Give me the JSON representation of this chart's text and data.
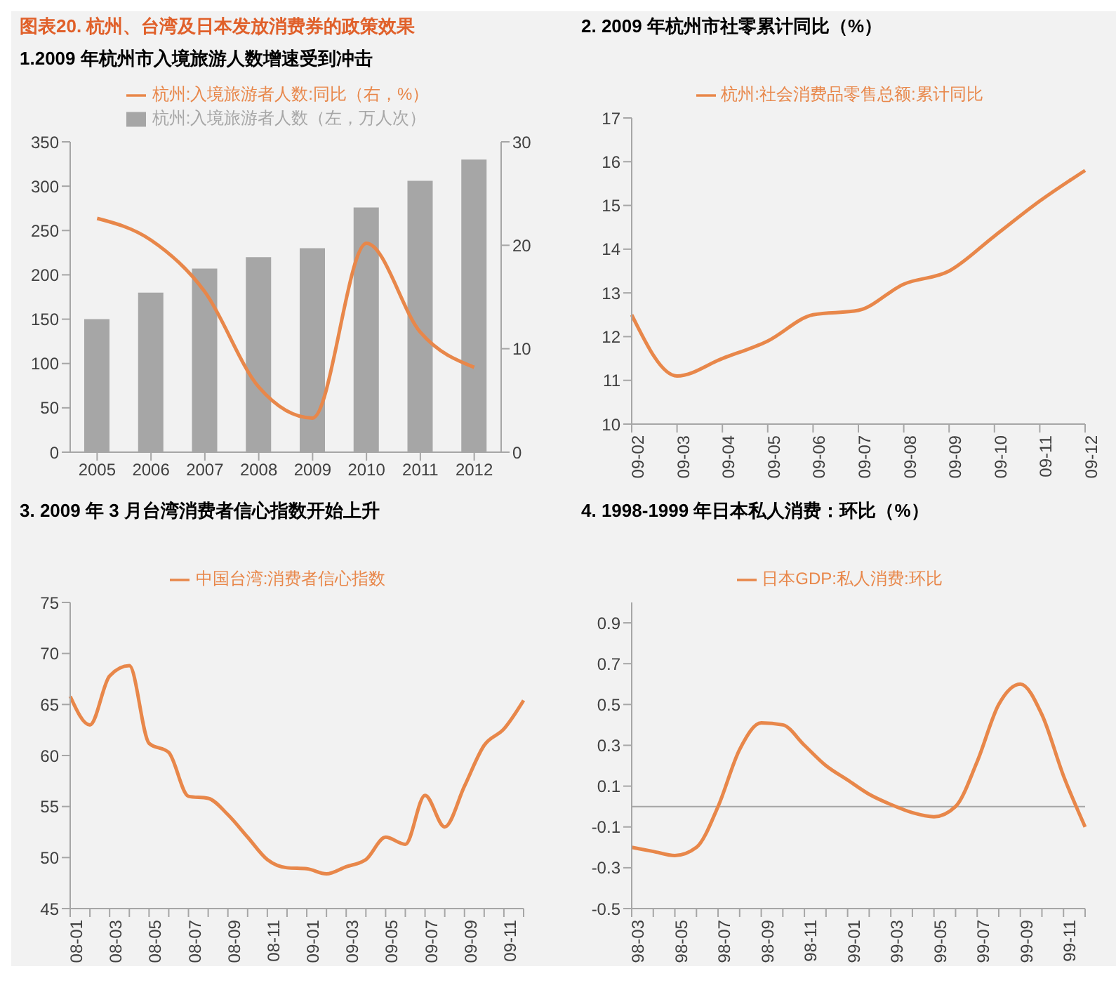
{
  "chart_data": [
    {
      "type": "bar",
      "title": "图表20.  杭州、台湾及日本发放消费券的政策效果",
      "subtitle": "1.2009 年杭州市入境旅游人数增速受到冲击",
      "categories": [
        "2005",
        "2006",
        "2007",
        "2008",
        "2009",
        "2010",
        "2011",
        "2012"
      ],
      "series": [
        {
          "name": "杭州:入境旅游者人数（左，万人次）",
          "color": "#a6a6a6",
          "values": [
            150,
            180,
            207,
            220,
            230,
            276,
            306,
            330
          ]
        },
        {
          "name": "杭州:入境旅游者人数:同比（右，%）",
          "type": "line",
          "axis": "y2",
          "color": "#e8874a",
          "values": [
            22.6,
            20.5,
            15.5,
            6.3,
            3.3,
            20.2,
            11.6,
            8.2
          ]
        }
      ],
      "ylim": [
        0,
        350
      ],
      "yticks": [
        0,
        50,
        100,
        150,
        200,
        250,
        300,
        350
      ],
      "y2lim": [
        0,
        30
      ],
      "y2ticks": [
        0,
        10,
        20,
        30
      ],
      "grid": false,
      "legend": "top",
      "marker": "none"
    },
    {
      "type": "line",
      "title": "2. 2009 年杭州市社零累计同比（%）",
      "categories": [
        "09-02",
        "09-03",
        "09-04",
        "09-05",
        "09-06",
        "09-07",
        "09-08",
        "09-09",
        "09-10",
        "09-11",
        "09-12"
      ],
      "series": [
        {
          "name": "杭州:社会消费品零售总额:累计同比",
          "color": "#e8874a",
          "values": [
            12.5,
            11.1,
            11.5,
            11.9,
            12.5,
            12.6,
            13.2,
            13.5,
            14.3,
            15.1,
            15.8
          ]
        }
      ],
      "ylim": [
        10,
        17
      ],
      "yticks": [
        10,
        11,
        12,
        13,
        14,
        15,
        16,
        17
      ],
      "grid": false,
      "legend": "top",
      "marker": "none"
    },
    {
      "type": "line",
      "title": "3. 2009 年 3 月台湾消费者信心指数开始上升",
      "categories": [
        "08-01",
        null,
        "08-03",
        null,
        "08-05",
        null,
        "08-07",
        null,
        "08-09",
        null,
        "08-11",
        null,
        "09-01",
        null,
        "09-03",
        null,
        "09-05",
        null,
        "09-07",
        null,
        "09-09",
        null,
        "09-11",
        null
      ],
      "series": [
        {
          "name": "中国台湾:消费者信心指数",
          "color": "#e8874a",
          "values": [
            65.8,
            63.0,
            67.8,
            68.8,
            61.2,
            60.3,
            56.0,
            55.8,
            54.2,
            52.0,
            49.8,
            49.0,
            48.9,
            48.4,
            49.1,
            49.8,
            52.0,
            51.3,
            56.1,
            53.0,
            57.0,
            61.0,
            62.6,
            65.4
          ]
        }
      ],
      "ylim": [
        45,
        75
      ],
      "yticks": [
        45,
        50,
        55,
        60,
        65,
        70,
        75
      ],
      "grid": false,
      "legend": "top",
      "marker": "none"
    },
    {
      "type": "line",
      "title": "4. 1998-1999 年日本私人消费：环比（%）",
      "categories": [
        "98-03",
        null,
        "98-05",
        null,
        "98-07",
        null,
        "98-09",
        null,
        "98-11",
        null,
        "99-01",
        null,
        "99-03",
        null,
        "99-05",
        null,
        "99-07",
        null,
        "99-09",
        null,
        "99-11",
        null
      ],
      "series": [
        {
          "name": "日本GDP:私人消费:环比",
          "color": "#e8874a",
          "values": [
            -0.2,
            -0.22,
            -0.24,
            -0.2,
            0.0,
            0.28,
            0.41,
            0.4,
            0.3,
            0.2,
            0.13,
            0.06,
            0.01,
            -0.03,
            -0.05,
            0.0,
            0.22,
            0.5,
            0.6,
            0.45,
            0.15,
            -0.1
          ]
        }
      ],
      "ylim": [
        -0.5,
        1.0
      ],
      "yticks": [
        -0.5,
        -0.3,
        -0.1,
        0.1,
        0.3,
        0.5,
        0.7,
        0.9
      ],
      "ref_lines": [
        {
          "axis": "y",
          "value": 0,
          "color": "#a6a6a6"
        }
      ],
      "grid": false,
      "legend": "top",
      "marker": "none"
    }
  ]
}
